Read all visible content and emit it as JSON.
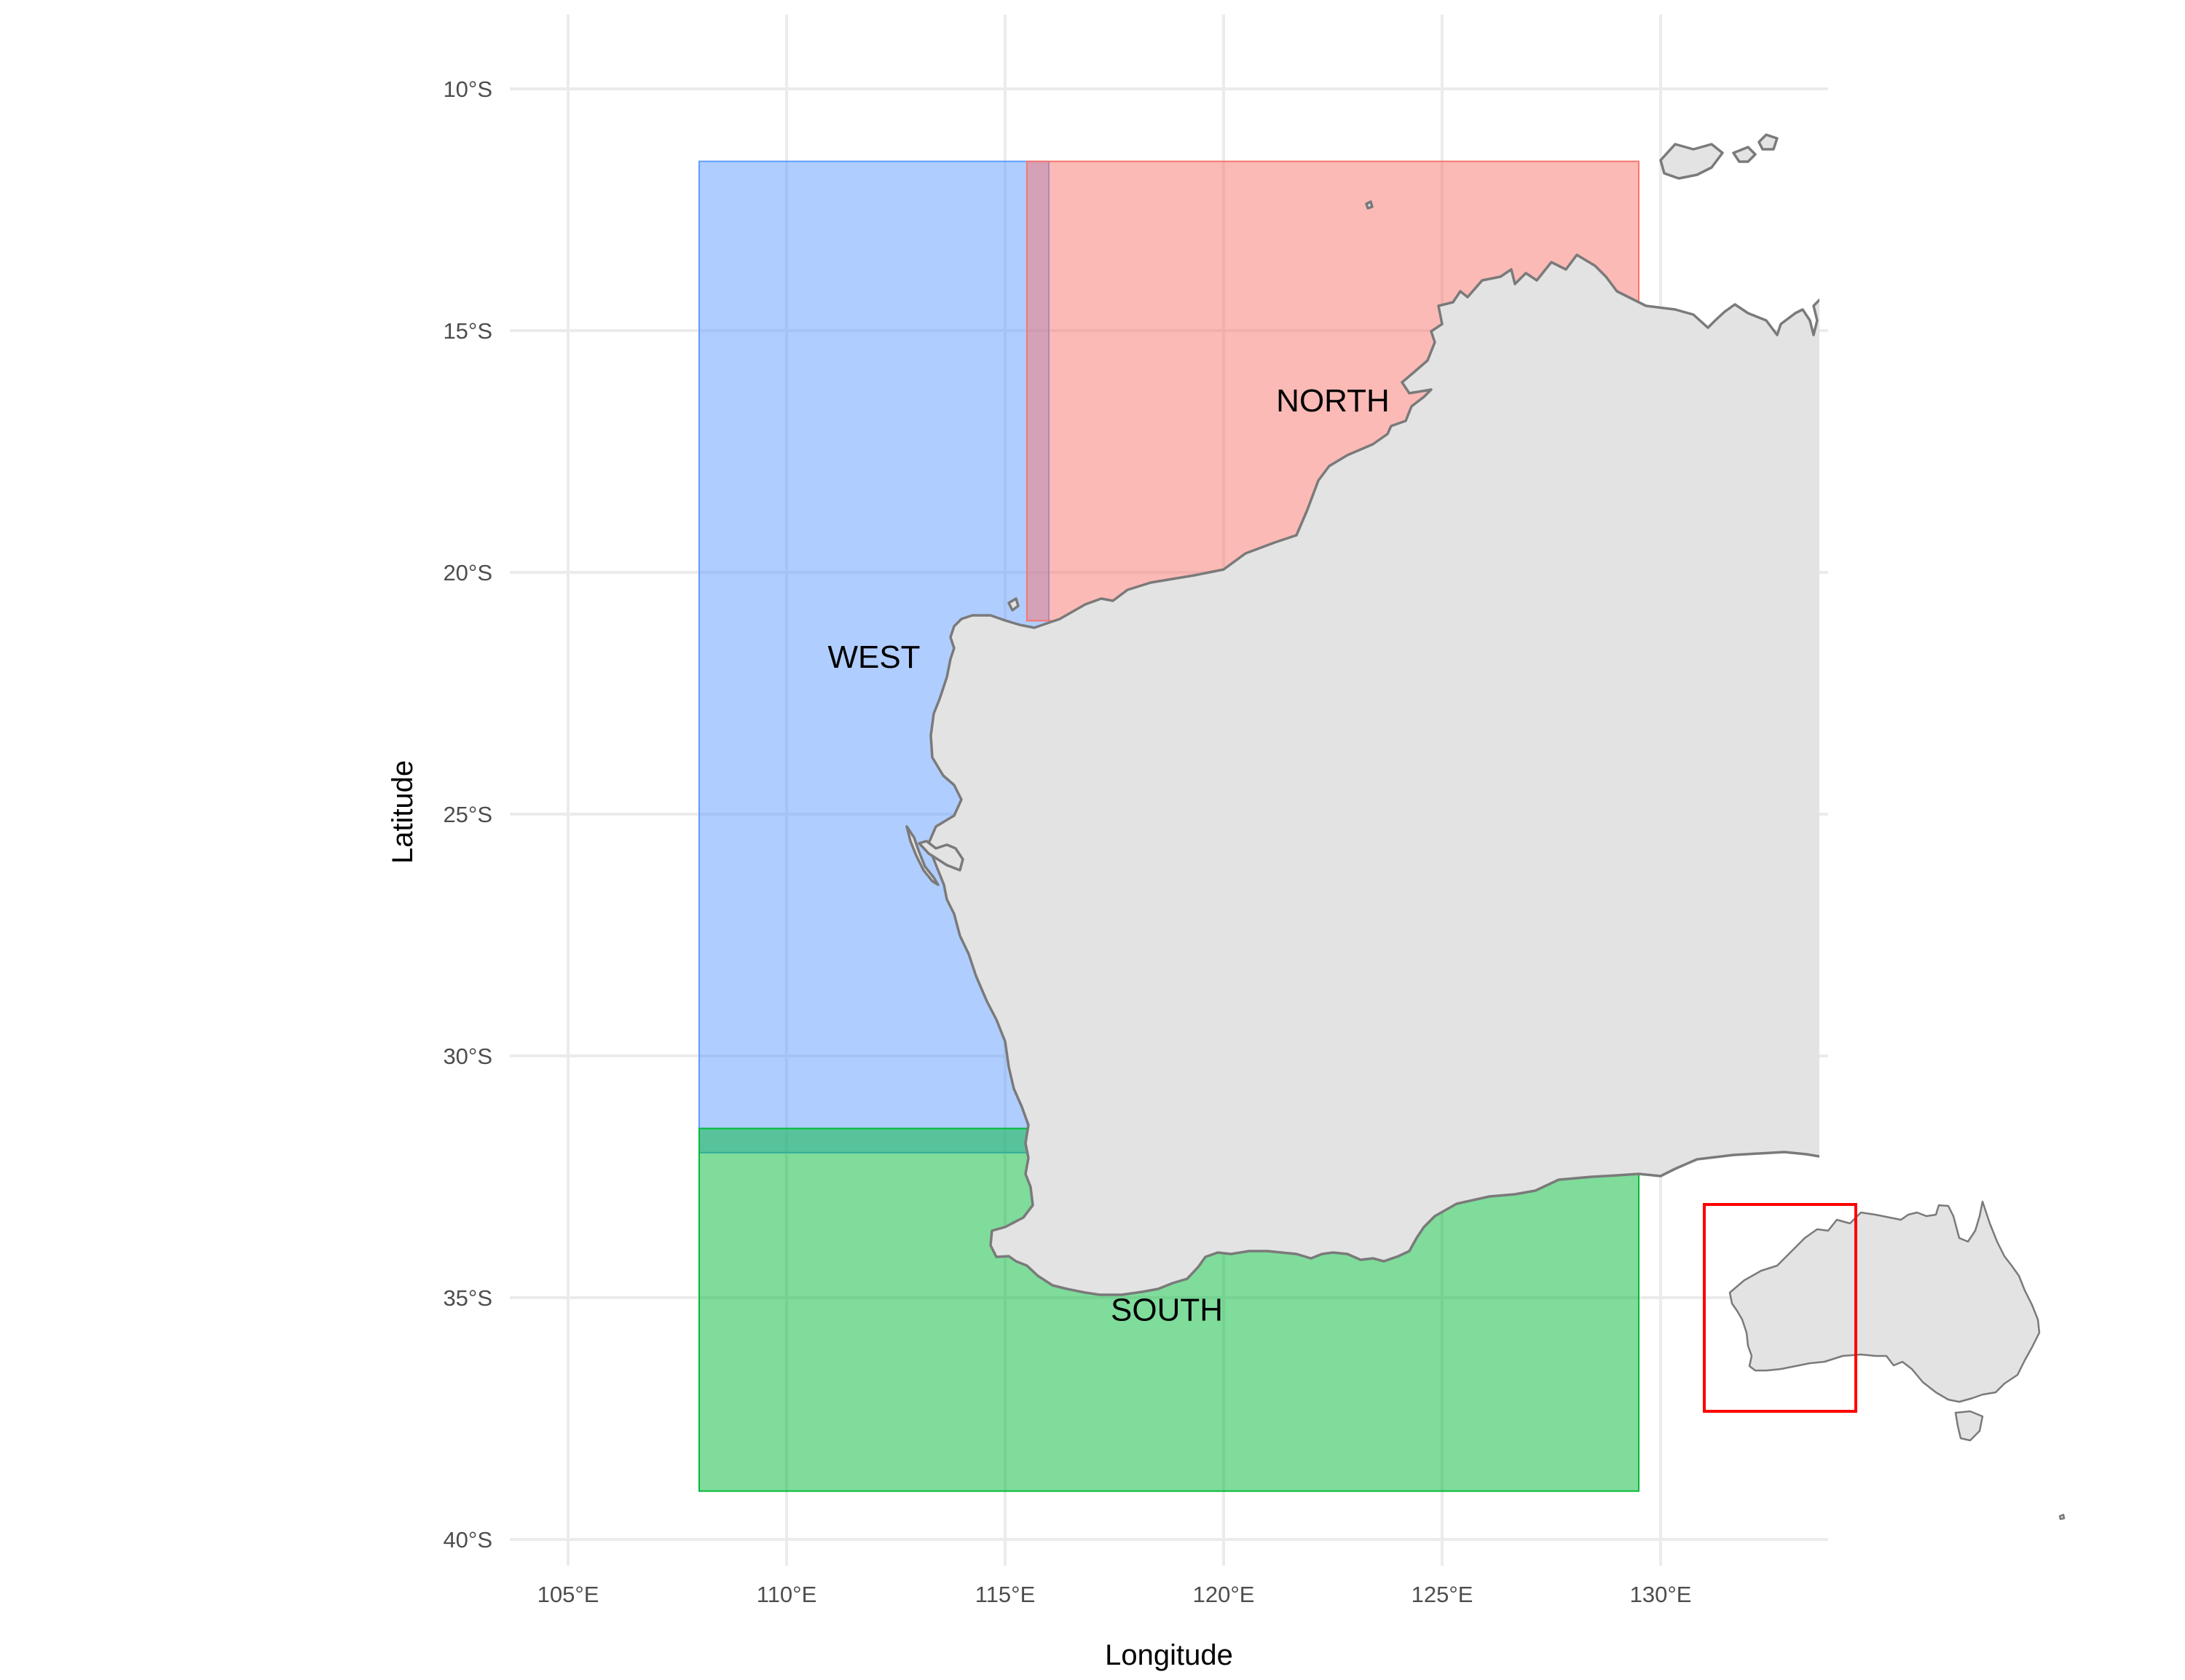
{
  "map": {
    "xlabel": "Longitude",
    "ylabel": "Latitude",
    "x_ticks": [
      "105°E",
      "110°E",
      "115°E",
      "120°E",
      "125°E",
      "130°E"
    ],
    "x_tick_values": [
      105,
      110,
      115,
      120,
      125,
      130
    ],
    "y_ticks": [
      "10°S",
      "15°S",
      "20°S",
      "25°S",
      "30°S",
      "35°S",
      "40°S"
    ],
    "y_tick_values": [
      -10,
      -15,
      -20,
      -25,
      -30,
      -35,
      -40
    ],
    "xlim": [
      103.5,
      134
    ],
    "ylim": [
      -41.5,
      -8.5
    ],
    "grid": true,
    "regions": [
      {
        "name": "WEST",
        "lon": [
          108,
          116
        ],
        "lat": [
          -32,
          -11.5
        ],
        "color": "#619CFF",
        "label_lon": 112,
        "label_lat": -21.8
      },
      {
        "name": "NORTH",
        "lon": [
          115.5,
          129.5
        ],
        "lat": [
          -21,
          -11.5
        ],
        "color": "#F8766D",
        "label_lon": 122.5,
        "label_lat": -16.5
      },
      {
        "name": "SOUTH",
        "lon": [
          108,
          129.5
        ],
        "lat": [
          -39,
          -31.5
        ],
        "color": "#00BA38",
        "label_lon": 118.7,
        "label_lat": -35.3
      }
    ],
    "inset": {
      "highlight_box_color": "#ff0000",
      "highlight_box_lon": [
        108,
        129.5
      ],
      "highlight_box_lat": [
        -39,
        -11.5
      ]
    }
  }
}
